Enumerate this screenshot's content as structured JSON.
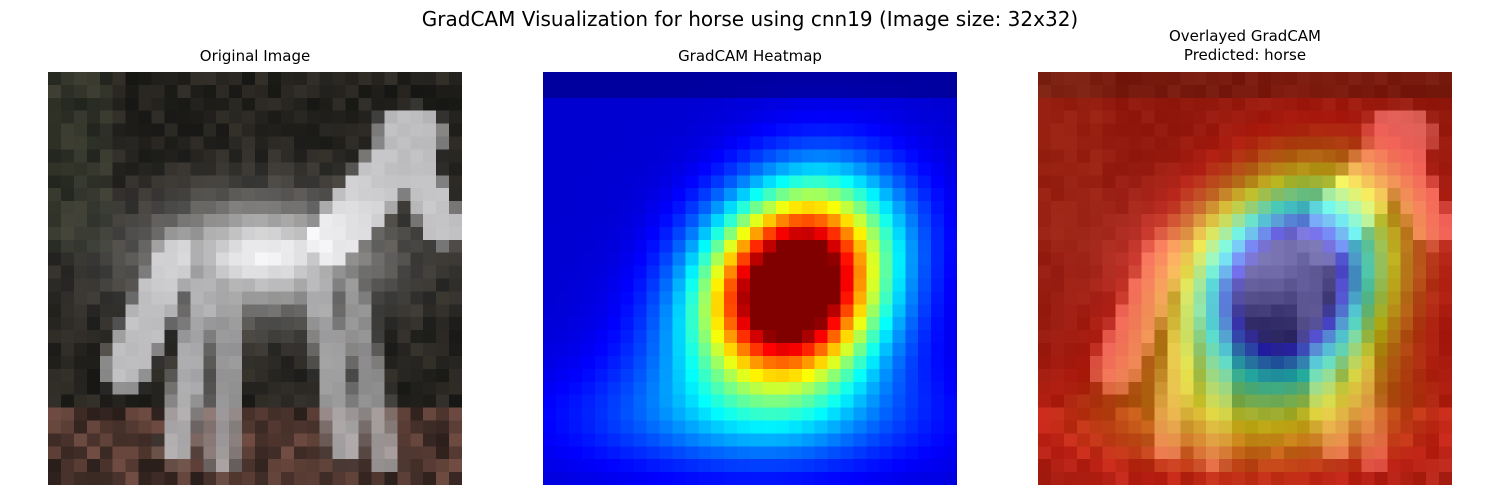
{
  "figure": {
    "title": "GradCAM Visualization for horse using cnn19 (Image size: 32x32)"
  },
  "panels": {
    "original": {
      "title": "Original Image"
    },
    "heatmap": {
      "title": "GradCAM Heatmap",
      "colormap": "jet"
    },
    "overlay": {
      "title_line1": "Overlayed GradCAM",
      "title_line2": "Predicted: horse"
    }
  },
  "image": {
    "size": "32x32",
    "predicted_label": "horse",
    "model": "cnn19"
  }
}
